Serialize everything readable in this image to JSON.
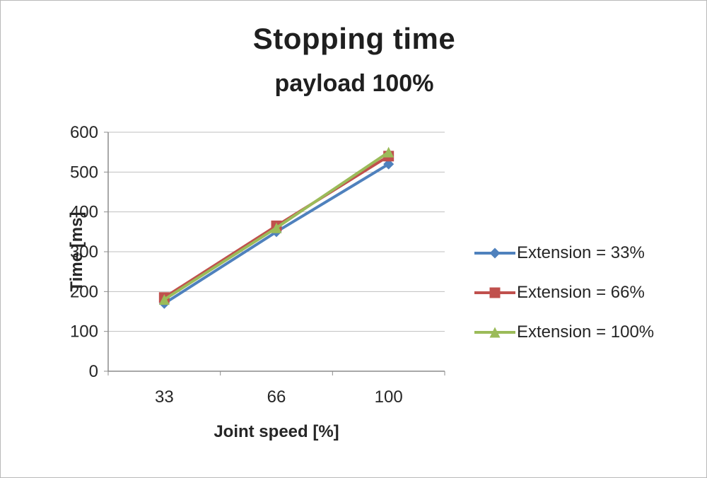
{
  "chart_data": {
    "type": "line",
    "title": "Stopping time",
    "subtitle": "payload 100%",
    "xlabel": "Joint speed [%]",
    "ylabel": "Time [ms]",
    "categories": [
      "33",
      "66",
      "100"
    ],
    "series": [
      {
        "name": "Extension = 33%",
        "values": [
          170,
          350,
          520
        ],
        "color": "#4F81BD",
        "marker": "diamond"
      },
      {
        "name": "Extension = 66%",
        "values": [
          185,
          365,
          540
        ],
        "color": "#C0504D",
        "marker": "square"
      },
      {
        "name": "Extension = 100%",
        "values": [
          180,
          360,
          550
        ],
        "color": "#9BBB59",
        "marker": "triangle"
      }
    ],
    "ylim": [
      0,
      600
    ],
    "ytick_step": 100,
    "grid": true,
    "legend_position": "right"
  },
  "colors": {
    "gridline": "#bfbfbf",
    "axis": "#8c8c8c",
    "tick_text": "#262626"
  }
}
